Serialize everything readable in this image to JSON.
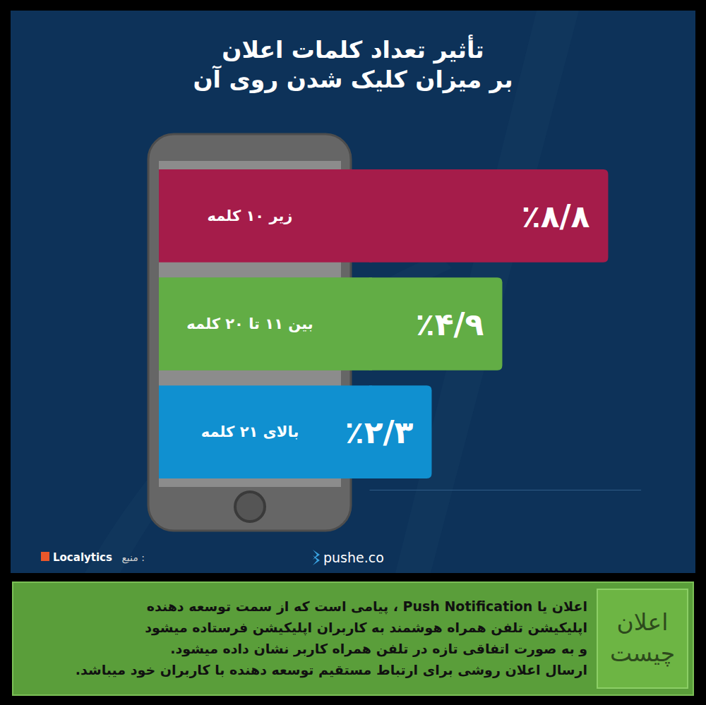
{
  "chart_data": {
    "type": "bar",
    "title": "تأثیر تعداد کلمات اعلان\nبر میزان کلیک شدن روی آن",
    "orientation": "horizontal",
    "categories": [
      "زیر ۱۰ کلمه",
      "بین ۱۱ تا ۲۰ کلمه",
      "بالای ۲۱ کلمه"
    ],
    "values": [
      8.8,
      4.9,
      2.3
    ],
    "value_labels": [
      "٪۸/۸",
      "٪۴/۹",
      "٪۲/۳"
    ],
    "colors": [
      "#a51c4a",
      "#62ad45",
      "#1090d0"
    ],
    "xlim": [
      0,
      10
    ],
    "data_labels": true,
    "tick_labels": false,
    "grid": false
  },
  "footer": {
    "source_label": "منبع :",
    "source": "Localytics",
    "brand": "pushe.co"
  },
  "info_box": {
    "heading": [
      "اعلان",
      "چیست"
    ],
    "lines": [
      "اعلان یا Push Notification ، پیامی است که از سمت توسعه دهنده",
      "اپلیکیشن تلفن همراه هوشمند به کاربران اپلیکیشن فرستاده میشود",
      "و به صورت اتفاقی تازه در تلفن همراه کاربر نشان داده میشود.",
      "ارسال اعلان روشی برای ارتباط مستقیم توسعه دهنده با کاربران خود میباشد."
    ]
  }
}
